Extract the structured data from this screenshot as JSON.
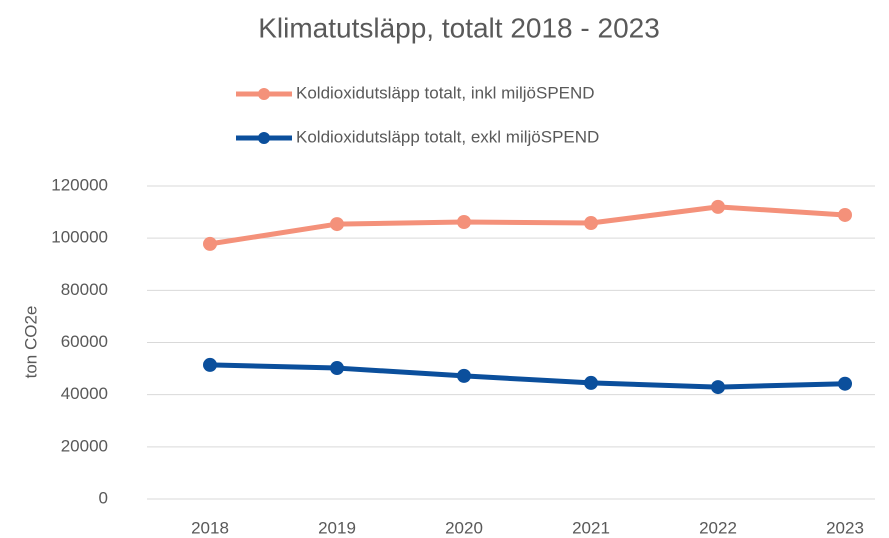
{
  "chart_data": {
    "type": "line",
    "title": "Klimatutsläpp, totalt 2018 - 2023",
    "y_label": "ton CO2e",
    "categories": [
      "2018",
      "2019",
      "2020",
      "2021",
      "2022",
      "2023"
    ],
    "series": [
      {
        "name": "Koldioxidutsläpp totalt, inkl miljöSPEND",
        "color": "#f4917a",
        "values": [
          97800,
          105400,
          106200,
          105800,
          112000,
          108900
        ]
      },
      {
        "name": "Koldioxidutsläpp totalt, exkl miljöSPEND",
        "color": "#0b4f9c",
        "values": [
          51400,
          50200,
          47200,
          44500,
          42900,
          44200
        ]
      }
    ],
    "ylim": [
      0,
      120000
    ],
    "yticks": [
      0,
      20000,
      40000,
      60000,
      80000,
      100000,
      120000
    ],
    "grid": true,
    "legend": "top"
  }
}
